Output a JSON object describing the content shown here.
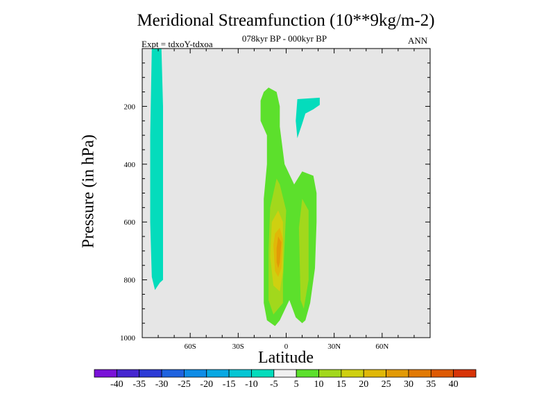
{
  "chart_data": {
    "type": "contour",
    "title": "Meridional Streamfunction (10**9kg/m-2)",
    "subtitle": "078kyr BP - 000kyr BP",
    "experiment_label": "Expt = tdxoY-tdxoa",
    "season_label": "ANN",
    "xlabel": "Latitude",
    "ylabel": "Pressure (in hPa)",
    "x_axis": {
      "range": [
        -90,
        90
      ],
      "ticks": [
        -60,
        -30,
        0,
        30,
        60
      ],
      "tick_labels": [
        "60S",
        "30S",
        "0",
        "30N",
        "60N"
      ]
    },
    "y_axis": {
      "range": [
        0,
        1000
      ],
      "reversed": true,
      "ticks": [
        200,
        400,
        600,
        800,
        1000
      ],
      "tick_labels": [
        "200",
        "400",
        "600",
        "800",
        "1000"
      ]
    },
    "background_color": "#e6e6e6",
    "colorbar": {
      "levels": [
        "-40",
        "-35",
        "-30",
        "-25",
        "-20",
        "-15",
        "-10",
        "-5",
        "5",
        "10",
        "15",
        "20",
        "25",
        "30",
        "35",
        "40"
      ],
      "colors": [
        "#7a12d8",
        "#4626d0",
        "#2d3bd6",
        "#1f63df",
        "#0e8ce6",
        "#08a8e3",
        "#05c6d4",
        "#04dcbc",
        "#f0f0f0",
        "#5ce02c",
        "#a2d81c",
        "#cfd010",
        "#e0b808",
        "#e29a06",
        "#e27a04",
        "#de5a04",
        "#d83408"
      ]
    },
    "regions": [
      {
        "range": "-10 to -5",
        "color": "#04dcbc",
        "polygon": [
          [
            -84,
            0
          ],
          [
            -78,
            0
          ],
          [
            -77,
            200
          ],
          [
            -77,
            400
          ],
          [
            -77,
            600
          ],
          [
            -77,
            800
          ],
          [
            -79,
            810
          ],
          [
            -82,
            835
          ],
          [
            -84,
            790
          ],
          [
            -85,
            600
          ],
          [
            -85,
            300
          ]
        ]
      },
      {
        "range": "-10 to -5",
        "color": "#04dcbc",
        "polygon": [
          [
            7,
            175
          ],
          [
            21,
            170
          ],
          [
            21,
            195
          ],
          [
            17,
            210
          ],
          [
            12,
            225
          ],
          [
            10,
            260
          ],
          [
            7,
            310
          ],
          [
            6,
            250
          ]
        ]
      },
      {
        "range": "5 to 10",
        "color": "#5ce02c",
        "polygon": [
          [
            -14,
            150
          ],
          [
            -11,
            135
          ],
          [
            -6,
            150
          ],
          [
            -4,
            200
          ],
          [
            -4,
            270
          ],
          [
            -1,
            400
          ],
          [
            5,
            470
          ],
          [
            10,
            425
          ],
          [
            17,
            440
          ],
          [
            19,
            500
          ],
          [
            19,
            600
          ],
          [
            18,
            760
          ],
          [
            15,
            880
          ],
          [
            12,
            940
          ],
          [
            10,
            950
          ],
          [
            6,
            930
          ],
          [
            2,
            870
          ],
          [
            -4,
            940
          ],
          [
            -7,
            960
          ],
          [
            -12,
            940
          ],
          [
            -14,
            880
          ],
          [
            -14,
            520
          ],
          [
            -12,
            400
          ],
          [
            -12,
            300
          ],
          [
            -16,
            250
          ],
          [
            -16,
            180
          ]
        ]
      },
      {
        "range": "10 to 15",
        "color": "#a2d81c",
        "polygon": [
          [
            -6,
            450
          ],
          [
            -4,
            470
          ],
          [
            0,
            560
          ],
          [
            -2,
            800
          ],
          [
            -2,
            880
          ],
          [
            -8,
            920
          ],
          [
            -11,
            870
          ],
          [
            -11,
            700
          ],
          [
            -10,
            550
          ]
        ]
      },
      {
        "range": "10 to 15",
        "color": "#a2d81c",
        "polygon": [
          [
            10,
            520
          ],
          [
            14,
            560
          ],
          [
            14,
            800
          ],
          [
            11,
            900
          ],
          [
            9,
            870
          ],
          [
            8,
            620
          ]
        ]
      },
      {
        "range": "15 to 20",
        "color": "#cfd010",
        "polygon": [
          [
            -5,
            560
          ],
          [
            -2,
            600
          ],
          [
            -2,
            770
          ],
          [
            -4,
            840
          ],
          [
            -8,
            820
          ],
          [
            -10,
            720
          ],
          [
            -9,
            600
          ]
        ]
      },
      {
        "range": "20 to 25",
        "color": "#e0b808",
        "polygon": [
          [
            -4,
            620
          ],
          [
            -2,
            660
          ],
          [
            -3,
            760
          ],
          [
            -5,
            790
          ],
          [
            -7,
            770
          ],
          [
            -8,
            680
          ],
          [
            -7,
            640
          ]
        ]
      },
      {
        "range": "25 to 30",
        "color": "#e29a06",
        "polygon": [
          [
            -5,
            650
          ],
          [
            -3,
            670
          ],
          [
            -4,
            740
          ],
          [
            -5,
            760
          ],
          [
            -6,
            740
          ],
          [
            -6,
            690
          ]
        ]
      }
    ]
  }
}
